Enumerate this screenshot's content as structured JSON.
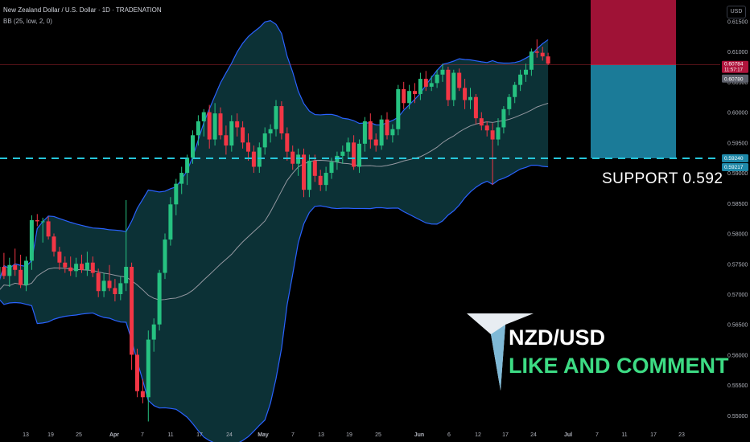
{
  "header": {
    "title": "New Zealand Dollar / U.S. Dollar · 1D · TRADENATION",
    "indicator": "BB (25, low, 2, 0)"
  },
  "currency_label": "USD",
  "annotations": {
    "support_text": "SUPPORT  0.592",
    "pair_text": "NZD/USD",
    "cta_text": "LIKE AND COMMENT"
  },
  "price_tags": {
    "current": "0.60784",
    "countdown": "11:57:17",
    "bb_basis": "0.60780",
    "support_upper": "0.59240",
    "support_lower": "0.59217"
  },
  "colors": {
    "up": "#26c281",
    "down": "#f23645",
    "band_line": "#2962ff",
    "band_fill": "#0e3a3f",
    "basis": "#9598a1",
    "support_line": "#26c6da",
    "tp_zone": "#1e88a8",
    "sl_zone": "#b0143c",
    "cta": "#3ddc84"
  },
  "chart_data": {
    "type": "candlestick",
    "title": "New Zealand Dollar / U.S. Dollar · 1D · TRADENATION",
    "ylim": [
      0.548,
      0.6185
    ],
    "y_ticks": [
      0.55,
      0.555,
      0.56,
      0.565,
      0.57,
      0.575,
      0.58,
      0.585,
      0.59,
      0.595,
      0.6,
      0.605,
      0.61,
      0.615
    ],
    "x_tick_labels": [
      "13",
      "19",
      "25",
      "Apr",
      "7",
      "11",
      "17",
      "24",
      "May",
      "7",
      "13",
      "19",
      "25",
      "Jun",
      "6",
      "12",
      "17",
      "24",
      "Jul",
      "7",
      "11",
      "17",
      "23"
    ],
    "support_level": 0.5924,
    "trade_zones": {
      "entry": 0.6078,
      "stop_loss": 0.6185,
      "take_profit": 0.5924
    },
    "candles": [
      {
        "o": 0.573,
        "h": 0.5755,
        "l": 0.5705,
        "c": 0.5745
      },
      {
        "o": 0.5745,
        "h": 0.5768,
        "l": 0.5725,
        "c": 0.573
      },
      {
        "o": 0.573,
        "h": 0.576,
        "l": 0.5712,
        "c": 0.5748
      },
      {
        "o": 0.5748,
        "h": 0.5775,
        "l": 0.573,
        "c": 0.574
      },
      {
        "o": 0.574,
        "h": 0.5765,
        "l": 0.571,
        "c": 0.5715
      },
      {
        "o": 0.5715,
        "h": 0.5762,
        "l": 0.5705,
        "c": 0.5755
      },
      {
        "o": 0.5755,
        "h": 0.583,
        "l": 0.574,
        "c": 0.5822
      },
      {
        "o": 0.5822,
        "h": 0.5832,
        "l": 0.5812,
        "c": 0.582
      },
      {
        "o": 0.582,
        "h": 0.5826,
        "l": 0.5785,
        "c": 0.582
      },
      {
        "o": 0.582,
        "h": 0.5828,
        "l": 0.579,
        "c": 0.5795
      },
      {
        "o": 0.5795,
        "h": 0.58,
        "l": 0.5762,
        "c": 0.577
      },
      {
        "o": 0.577,
        "h": 0.5778,
        "l": 0.574,
        "c": 0.5752
      },
      {
        "o": 0.5752,
        "h": 0.5762,
        "l": 0.5735,
        "c": 0.5744
      },
      {
        "o": 0.5744,
        "h": 0.5762,
        "l": 0.573,
        "c": 0.5738
      },
      {
        "o": 0.5738,
        "h": 0.576,
        "l": 0.5728,
        "c": 0.575
      },
      {
        "o": 0.575,
        "h": 0.5765,
        "l": 0.5735,
        "c": 0.574
      },
      {
        "o": 0.574,
        "h": 0.577,
        "l": 0.573,
        "c": 0.5752
      },
      {
        "o": 0.5752,
        "h": 0.5762,
        "l": 0.5728,
        "c": 0.5735
      },
      {
        "o": 0.5735,
        "h": 0.5742,
        "l": 0.5695,
        "c": 0.5705
      },
      {
        "o": 0.5705,
        "h": 0.5735,
        "l": 0.5695,
        "c": 0.5722
      },
      {
        "o": 0.5722,
        "h": 0.5748,
        "l": 0.5705,
        "c": 0.571
      },
      {
        "o": 0.571,
        "h": 0.5725,
        "l": 0.5688,
        "c": 0.57
      },
      {
        "o": 0.57,
        "h": 0.573,
        "l": 0.569,
        "c": 0.5718
      },
      {
        "o": 0.5718,
        "h": 0.5855,
        "l": 0.5705,
        "c": 0.5745
      },
      {
        "o": 0.5745,
        "h": 0.5752,
        "l": 0.5575,
        "c": 0.56
      },
      {
        "o": 0.56,
        "h": 0.561,
        "l": 0.553,
        "c": 0.554
      },
      {
        "o": 0.554,
        "h": 0.556,
        "l": 0.552,
        "c": 0.553
      },
      {
        "o": 0.553,
        "h": 0.564,
        "l": 0.549,
        "c": 0.5625
      },
      {
        "o": 0.5625,
        "h": 0.566,
        "l": 0.5605,
        "c": 0.565
      },
      {
        "o": 0.565,
        "h": 0.574,
        "l": 0.564,
        "c": 0.5735
      },
      {
        "o": 0.5735,
        "h": 0.58,
        "l": 0.5725,
        "c": 0.579
      },
      {
        "o": 0.579,
        "h": 0.586,
        "l": 0.578,
        "c": 0.5848
      },
      {
        "o": 0.5848,
        "h": 0.589,
        "l": 0.583,
        "c": 0.5882
      },
      {
        "o": 0.5882,
        "h": 0.591,
        "l": 0.5865,
        "c": 0.59
      },
      {
        "o": 0.59,
        "h": 0.593,
        "l": 0.588,
        "c": 0.5925
      },
      {
        "o": 0.5925,
        "h": 0.597,
        "l": 0.5915,
        "c": 0.5962
      },
      {
        "o": 0.5962,
        "h": 0.5995,
        "l": 0.5945,
        "c": 0.5985
      },
      {
        "o": 0.5985,
        "h": 0.6005,
        "l": 0.596,
        "c": 0.6
      },
      {
        "o": 0.6,
        "h": 0.6012,
        "l": 0.594,
        "c": 0.5955
      },
      {
        "o": 0.5955,
        "h": 0.6015,
        "l": 0.5945,
        "c": 0.5998
      },
      {
        "o": 0.5998,
        "h": 0.6008,
        "l": 0.5955,
        "c": 0.5962
      },
      {
        "o": 0.5962,
        "h": 0.5978,
        "l": 0.593,
        "c": 0.5945
      },
      {
        "o": 0.5945,
        "h": 0.5995,
        "l": 0.5935,
        "c": 0.5985
      },
      {
        "o": 0.5985,
        "h": 0.5998,
        "l": 0.596,
        "c": 0.5975
      },
      {
        "o": 0.5975,
        "h": 0.5985,
        "l": 0.594,
        "c": 0.595
      },
      {
        "o": 0.595,
        "h": 0.5965,
        "l": 0.592,
        "c": 0.5935
      },
      {
        "o": 0.5935,
        "h": 0.5945,
        "l": 0.59,
        "c": 0.591
      },
      {
        "o": 0.591,
        "h": 0.595,
        "l": 0.59,
        "c": 0.5942
      },
      {
        "o": 0.5942,
        "h": 0.5975,
        "l": 0.593,
        "c": 0.5965
      },
      {
        "o": 0.5965,
        "h": 0.598,
        "l": 0.595,
        "c": 0.5972
      },
      {
        "o": 0.5972,
        "h": 0.602,
        "l": 0.596,
        "c": 0.601
      },
      {
        "o": 0.601,
        "h": 0.6018,
        "l": 0.5955,
        "c": 0.5965
      },
      {
        "o": 0.5965,
        "h": 0.5975,
        "l": 0.592,
        "c": 0.5935
      },
      {
        "o": 0.5935,
        "h": 0.5945,
        "l": 0.5905,
        "c": 0.5915
      },
      {
        "o": 0.5915,
        "h": 0.594,
        "l": 0.5895,
        "c": 0.593
      },
      {
        "o": 0.593,
        "h": 0.594,
        "l": 0.586,
        "c": 0.5872
      },
      {
        "o": 0.5872,
        "h": 0.593,
        "l": 0.586,
        "c": 0.592
      },
      {
        "o": 0.592,
        "h": 0.593,
        "l": 0.5885,
        "c": 0.5895
      },
      {
        "o": 0.5895,
        "h": 0.5905,
        "l": 0.587,
        "c": 0.588
      },
      {
        "o": 0.588,
        "h": 0.591,
        "l": 0.587,
        "c": 0.59
      },
      {
        "o": 0.59,
        "h": 0.5925,
        "l": 0.589,
        "c": 0.5918
      },
      {
        "o": 0.5918,
        "h": 0.5935,
        "l": 0.5905,
        "c": 0.5928
      },
      {
        "o": 0.5928,
        "h": 0.5945,
        "l": 0.5915,
        "c": 0.5935
      },
      {
        "o": 0.5935,
        "h": 0.5958,
        "l": 0.5925,
        "c": 0.595
      },
      {
        "o": 0.595,
        "h": 0.5962,
        "l": 0.5905,
        "c": 0.591
      },
      {
        "o": 0.591,
        "h": 0.5955,
        "l": 0.59,
        "c": 0.5948
      },
      {
        "o": 0.5948,
        "h": 0.5992,
        "l": 0.5935,
        "c": 0.5985
      },
      {
        "o": 0.5985,
        "h": 0.5998,
        "l": 0.594,
        "c": 0.5955
      },
      {
        "o": 0.5955,
        "h": 0.5965,
        "l": 0.5935,
        "c": 0.5945
      },
      {
        "o": 0.5945,
        "h": 0.5995,
        "l": 0.5938,
        "c": 0.5988
      },
      {
        "o": 0.5988,
        "h": 0.6,
        "l": 0.5955,
        "c": 0.5962
      },
      {
        "o": 0.5962,
        "h": 0.598,
        "l": 0.595,
        "c": 0.5972
      },
      {
        "o": 0.5972,
        "h": 0.6045,
        "l": 0.5962,
        "c": 0.6038
      },
      {
        "o": 0.6038,
        "h": 0.605,
        "l": 0.6005,
        "c": 0.6015
      },
      {
        "o": 0.6015,
        "h": 0.6045,
        "l": 0.6005,
        "c": 0.6035
      },
      {
        "o": 0.6035,
        "h": 0.6048,
        "l": 0.6015,
        "c": 0.603
      },
      {
        "o": 0.603,
        "h": 0.6065,
        "l": 0.602,
        "c": 0.6055
      },
      {
        "o": 0.6055,
        "h": 0.6068,
        "l": 0.6035,
        "c": 0.6042
      },
      {
        "o": 0.6042,
        "h": 0.606,
        "l": 0.6035,
        "c": 0.6048
      },
      {
        "o": 0.6048,
        "h": 0.607,
        "l": 0.604,
        "c": 0.6062
      },
      {
        "o": 0.6062,
        "h": 0.608,
        "l": 0.605,
        "c": 0.607
      },
      {
        "o": 0.607,
        "h": 0.6075,
        "l": 0.601,
        "c": 0.602
      },
      {
        "o": 0.602,
        "h": 0.607,
        "l": 0.601,
        "c": 0.6065
      },
      {
        "o": 0.6065,
        "h": 0.6072,
        "l": 0.6035,
        "c": 0.604
      },
      {
        "o": 0.604,
        "h": 0.6055,
        "l": 0.6005,
        "c": 0.602
      },
      {
        "o": 0.602,
        "h": 0.604,
        "l": 0.6005,
        "c": 0.6025
      },
      {
        "o": 0.6025,
        "h": 0.603,
        "l": 0.598,
        "c": 0.599
      },
      {
        "o": 0.599,
        "h": 0.6,
        "l": 0.597,
        "c": 0.5978
      },
      {
        "o": 0.5978,
        "h": 0.5985,
        "l": 0.596,
        "c": 0.597
      },
      {
        "o": 0.597,
        "h": 0.5982,
        "l": 0.588,
        "c": 0.5955
      },
      {
        "o": 0.5955,
        "h": 0.599,
        "l": 0.5945,
        "c": 0.5975
      },
      {
        "o": 0.5975,
        "h": 0.601,
        "l": 0.5965,
        "c": 0.6005
      },
      {
        "o": 0.6005,
        "h": 0.603,
        "l": 0.5995,
        "c": 0.6025
      },
      {
        "o": 0.6025,
        "h": 0.605,
        "l": 0.6015,
        "c": 0.6045
      },
      {
        "o": 0.6045,
        "h": 0.607,
        "l": 0.6035,
        "c": 0.6062
      },
      {
        "o": 0.6062,
        "h": 0.608,
        "l": 0.605,
        "c": 0.607
      },
      {
        "o": 0.607,
        "h": 0.6105,
        "l": 0.606,
        "c": 0.61
      },
      {
        "o": 0.61,
        "h": 0.612,
        "l": 0.609,
        "c": 0.6098
      },
      {
        "o": 0.6098,
        "h": 0.6108,
        "l": 0.6085,
        "c": 0.6092
      },
      {
        "o": 0.6092,
        "h": 0.6098,
        "l": 0.6078,
        "c": 0.608
      }
    ]
  }
}
